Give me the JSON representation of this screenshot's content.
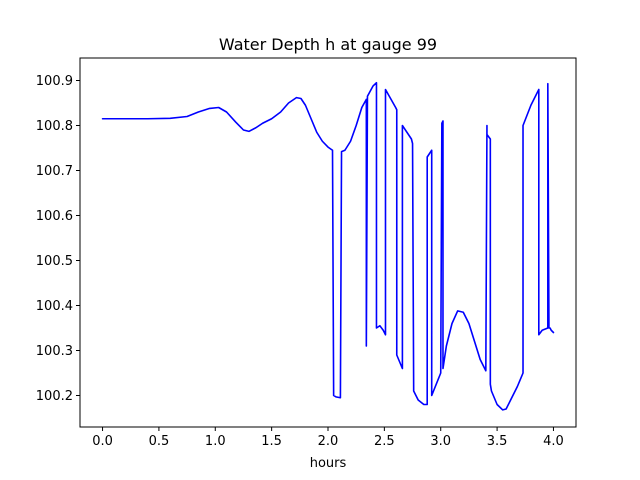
{
  "chart_data": {
    "type": "line",
    "title": "Water Depth h at gauge 99",
    "xlabel": "hours",
    "ylabel": "",
    "xlim": [
      -0.2,
      4.2
    ],
    "ylim": [
      100.13,
      100.95
    ],
    "xticks": [
      0.0,
      0.5,
      1.0,
      1.5,
      2.0,
      2.5,
      3.0,
      3.5,
      4.0
    ],
    "xtick_labels": [
      "0.0",
      "0.5",
      "1.0",
      "1.5",
      "2.0",
      "2.5",
      "3.0",
      "3.5",
      "4.0"
    ],
    "yticks": [
      100.2,
      100.3,
      100.4,
      100.5,
      100.6,
      100.7,
      100.8,
      100.9
    ],
    "ytick_labels": [
      "100.2",
      "100.3",
      "100.4",
      "100.5",
      "100.6",
      "100.7",
      "100.8",
      "100.9"
    ],
    "grid": false,
    "line_color": "#0000ff",
    "series": [
      {
        "name": "",
        "x": [
          0.0,
          0.2,
          0.4,
          0.6,
          0.75,
          0.85,
          0.95,
          1.03,
          1.1,
          1.18,
          1.25,
          1.3,
          1.36,
          1.42,
          1.5,
          1.58,
          1.65,
          1.72,
          1.76,
          1.8,
          1.85,
          1.9,
          1.95,
          2.0,
          2.04,
          2.05,
          2.07,
          2.11,
          2.12,
          2.15,
          2.2,
          2.25,
          2.3,
          2.34,
          2.34,
          2.35,
          2.4,
          2.43,
          2.43,
          2.46,
          2.49,
          2.51,
          2.51,
          2.6,
          2.61,
          2.61,
          2.66,
          2.66,
          2.74,
          2.75,
          2.76,
          2.8,
          2.85,
          2.88,
          2.88,
          2.92,
          2.92,
          3.0,
          3.01,
          3.02,
          3.02,
          3.05,
          3.1,
          3.15,
          3.2,
          3.25,
          3.3,
          3.35,
          3.4,
          3.41,
          3.41,
          3.44,
          3.44,
          3.45,
          3.5,
          3.55,
          3.58,
          3.62,
          3.68,
          3.73,
          3.73,
          3.8,
          3.86,
          3.87,
          3.87,
          3.9,
          3.95,
          3.95,
          3.96,
          3.97,
          3.98,
          4.0
        ],
        "y": [
          100.815,
          100.815,
          100.815,
          100.816,
          100.82,
          100.83,
          100.838,
          100.84,
          100.83,
          100.808,
          100.79,
          100.787,
          100.795,
          100.805,
          100.815,
          100.83,
          100.85,
          100.862,
          100.86,
          100.845,
          100.815,
          100.785,
          100.765,
          100.752,
          100.745,
          100.2,
          100.197,
          100.195,
          100.742,
          100.745,
          100.765,
          100.8,
          100.84,
          100.858,
          100.31,
          100.865,
          100.888,
          100.895,
          100.35,
          100.355,
          100.345,
          100.335,
          100.88,
          100.84,
          100.835,
          100.29,
          100.26,
          100.8,
          100.77,
          100.76,
          100.21,
          100.19,
          100.18,
          100.18,
          100.73,
          100.745,
          100.2,
          100.25,
          100.805,
          100.81,
          100.26,
          100.31,
          100.36,
          100.388,
          100.385,
          100.36,
          100.32,
          100.28,
          100.255,
          100.8,
          100.78,
          100.77,
          100.225,
          100.21,
          100.18,
          100.168,
          100.17,
          100.19,
          100.22,
          100.25,
          100.8,
          100.845,
          100.875,
          100.88,
          100.335,
          100.345,
          100.35,
          100.893,
          100.35,
          100.35,
          100.345,
          100.34
        ]
      }
    ]
  }
}
